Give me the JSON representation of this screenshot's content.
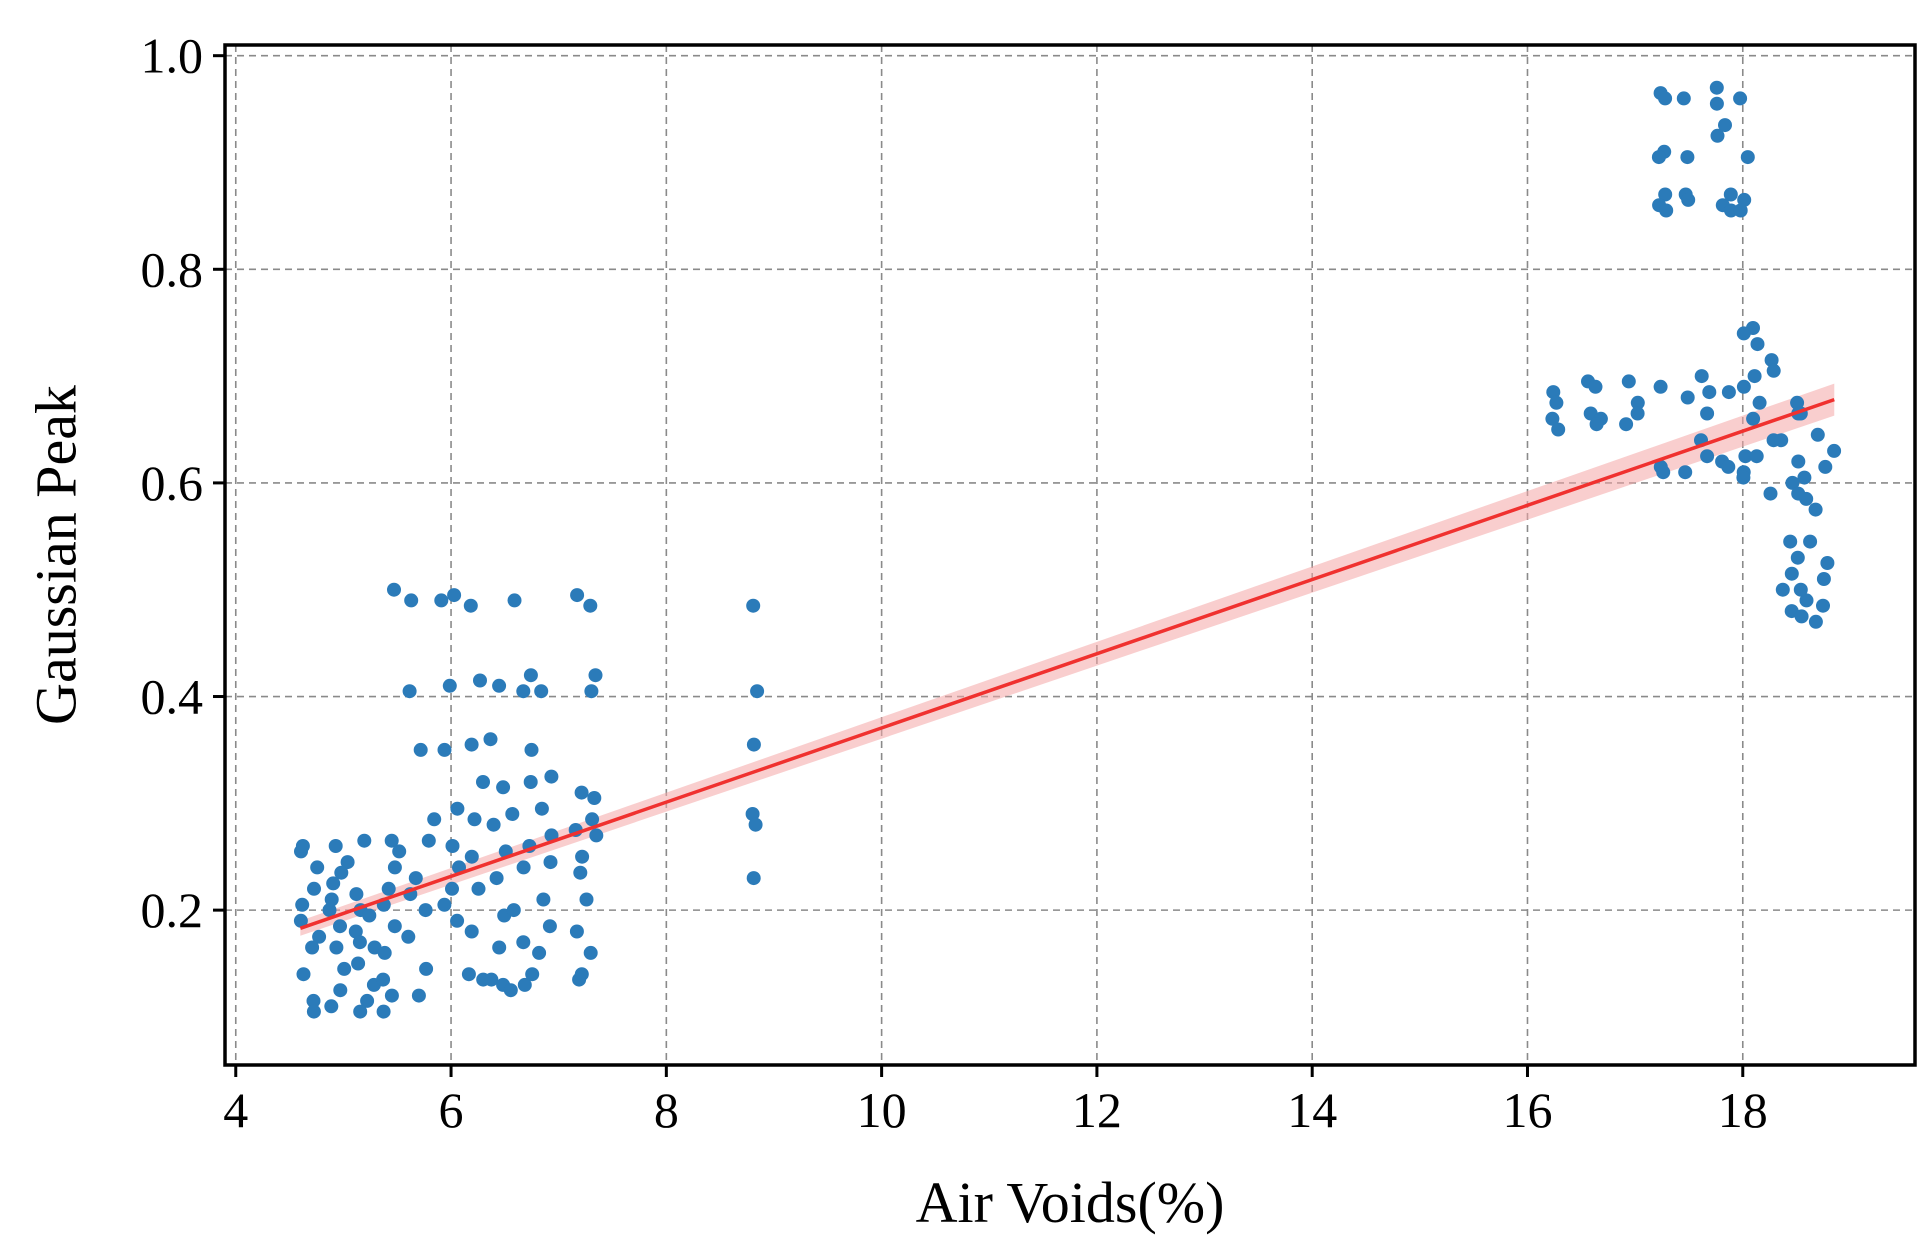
{
  "chart_data": {
    "type": "scatter",
    "title": "",
    "xlabel": "Air Voids(%)",
    "ylabel": "Gaussian Peak",
    "xlim": [
      3.9,
      19.6
    ],
    "ylim": [
      0.055,
      1.01
    ],
    "grid": true,
    "xticks": [
      4,
      6,
      8,
      10,
      12,
      14,
      16,
      18
    ],
    "xtick_labels": [
      "4",
      "6",
      "8",
      "10",
      "12",
      "14",
      "16",
      "18"
    ],
    "yticks": [
      0.2,
      0.4,
      0.6,
      0.8,
      1.0
    ],
    "ytick_labels": [
      "0.2",
      "0.4",
      "0.6",
      "0.8",
      "1.0"
    ],
    "colors": {
      "points": "#2b7bb9",
      "fit_line": "#f0312f",
      "confidence_band": "#f4a6a6"
    },
    "regression": {
      "x": [
        4.6,
        18.85
      ],
      "y": [
        0.183,
        0.678
      ],
      "ci_upper": [
        0.19,
        0.693
      ],
      "ci_lower": [
        0.176,
        0.663
      ]
    },
    "series": [
      {
        "name": "Gaussian Peak",
        "clusters": [
          {
            "x": [
              4.55,
              4.78
            ],
            "ys": [
              0.255,
              0.24,
              0.205,
              0.175,
              0.165,
              0.14,
              0.115,
              0.105,
              0.19,
              0.22,
              0.26
            ]
          },
          {
            "x": [
              4.85,
              5.05
            ],
            "ys": [
              0.26,
              0.245,
              0.225,
              0.2,
              0.185,
              0.165,
              0.145,
              0.125,
              0.11,
              0.235,
              0.21
            ]
          },
          {
            "x": [
              5.1,
              5.3
            ],
            "ys": [
              0.265,
              0.215,
              0.2,
              0.18,
              0.165,
              0.15,
              0.13,
              0.115,
              0.105,
              0.195,
              0.17
            ]
          },
          {
            "x": [
              5.35,
              5.55
            ],
            "ys": [
              0.265,
              0.255,
              0.22,
              0.205,
              0.185,
              0.16,
              0.135,
              0.12,
              0.105,
              0.5,
              0.24
            ]
          },
          {
            "x": [
              5.6,
              5.85
            ],
            "ys": [
              0.49,
              0.405,
              0.35,
              0.285,
              0.265,
              0.23,
              0.215,
              0.2,
              0.175,
              0.145,
              0.12
            ]
          },
          {
            "x": [
              5.9,
              6.1
            ],
            "ys": [
              0.49,
              0.495,
              0.41,
              0.35,
              0.295,
              0.26,
              0.24,
              0.22,
              0.205,
              0.19
            ]
          },
          {
            "x": [
              6.1,
              6.3
            ],
            "ys": [
              0.485,
              0.415,
              0.355,
              0.32,
              0.285,
              0.25,
              0.22,
              0.18,
              0.14,
              0.135
            ]
          },
          {
            "x": [
              6.35,
              6.55
            ],
            "ys": [
              0.41,
              0.36,
              0.315,
              0.28,
              0.255,
              0.23,
              0.195,
              0.165,
              0.135,
              0.13
            ]
          },
          {
            "x": [
              6.55,
              6.75
            ],
            "ys": [
              0.49,
              0.42,
              0.405,
              0.35,
              0.32,
              0.29,
              0.26,
              0.24,
              0.2,
              0.17,
              0.13,
              0.125
            ]
          },
          {
            "x": [
              6.75,
              6.95
            ],
            "ys": [
              0.405,
              0.325,
              0.295,
              0.27,
              0.245,
              0.21,
              0.185,
              0.16,
              0.14
            ]
          },
          {
            "x": [
              7.1,
              7.3
            ],
            "ys": [
              0.495,
              0.485,
              0.31,
              0.275,
              0.25,
              0.235,
              0.21,
              0.18,
              0.16,
              0.14,
              0.135
            ]
          },
          {
            "x": [
              7.3,
              7.4
            ],
            "ys": [
              0.42,
              0.405,
              0.305,
              0.285,
              0.27
            ]
          },
          {
            "x": [
              8.8,
              8.85
            ],
            "ys": [
              0.485,
              0.405,
              0.355,
              0.29,
              0.28,
              0.23
            ]
          },
          {
            "x": [
              16.2,
              16.3
            ],
            "ys": [
              0.685,
              0.675,
              0.66,
              0.65
            ]
          },
          {
            "x": [
              16.5,
              16.7
            ],
            "ys": [
              0.695,
              0.69,
              0.665,
              0.66,
              0.655
            ]
          },
          {
            "x": [
              16.9,
              17.1
            ],
            "ys": [
              0.695,
              0.675,
              0.665,
              0.655
            ]
          },
          {
            "x": [
              17.2,
              17.3
            ],
            "ys": [
              0.965,
              0.96,
              0.91,
              0.905,
              0.87,
              0.86,
              0.855,
              0.69,
              0.615,
              0.61
            ]
          },
          {
            "x": [
              17.45,
              17.5
            ],
            "ys": [
              0.96,
              0.905,
              0.87,
              0.865,
              0.68,
              0.61
            ]
          },
          {
            "x": [
              17.6,
              17.7
            ],
            "ys": [
              0.7,
              0.685,
              0.665,
              0.64,
              0.625
            ]
          },
          {
            "x": [
              17.75,
              17.9
            ],
            "ys": [
              0.97,
              0.955,
              0.935,
              0.925,
              0.87,
              0.86,
              0.855,
              0.685,
              0.62,
              0.615
            ]
          },
          {
            "x": [
              17.95,
              18.05
            ],
            "ys": [
              0.96,
              0.905,
              0.865,
              0.855,
              0.625,
              0.61
            ]
          },
          {
            "x": [
              18.0,
              18.3
            ],
            "ys": [
              0.745,
              0.74,
              0.73,
              0.715,
              0.705,
              0.7,
              0.69,
              0.675,
              0.66,
              0.64,
              0.625,
              0.605,
              0.59
            ]
          },
          {
            "x": [
              18.35,
              18.6
            ],
            "ys": [
              0.545,
              0.53,
              0.515,
              0.5,
              0.49,
              0.48,
              0.475,
              0.665,
              0.64,
              0.62,
              0.6,
              0.585
            ]
          },
          {
            "x": [
              18.5,
              18.9
            ],
            "ys": [
              0.675,
              0.665,
              0.645,
              0.63,
              0.615,
              0.605,
              0.59,
              0.575,
              0.545,
              0.525,
              0.51,
              0.5,
              0.485,
              0.47
            ]
          }
        ]
      }
    ]
  }
}
